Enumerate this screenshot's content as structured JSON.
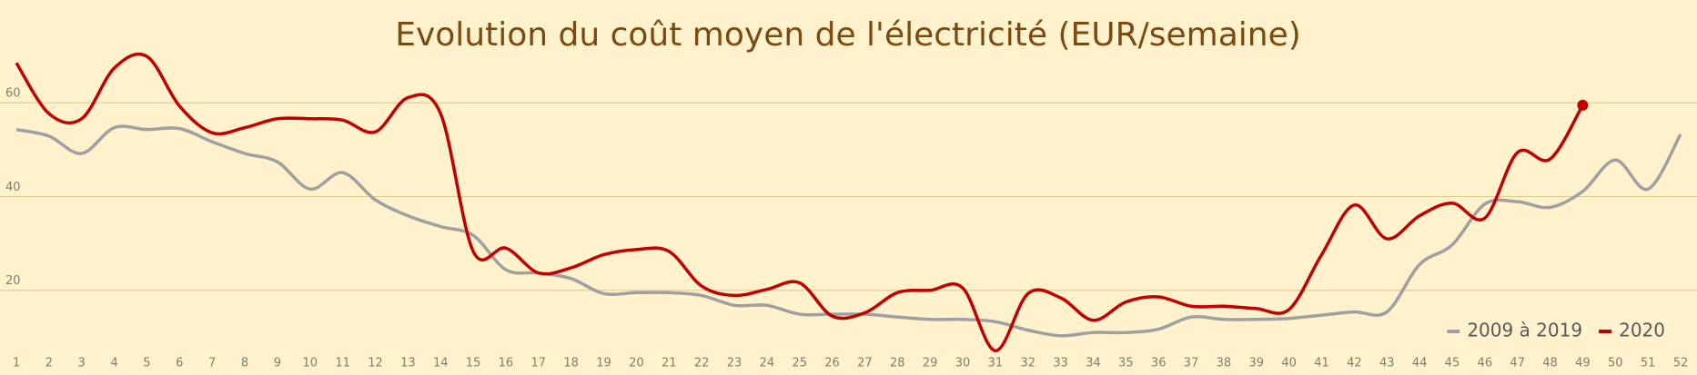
{
  "chart_data": {
    "type": "line",
    "title": "Evolution du coût moyen de l'électricité (EUR/semaine)",
    "categories": [
      "1",
      "2",
      "3",
      "4",
      "5",
      "6",
      "7",
      "8",
      "9",
      "10",
      "11",
      "12",
      "13",
      "14",
      "15",
      "16",
      "17",
      "18",
      "19",
      "20",
      "21",
      "22",
      "23",
      "24",
      "25",
      "26",
      "27",
      "28",
      "29",
      "30",
      "31",
      "32",
      "33",
      "34",
      "35",
      "36",
      "37",
      "38",
      "39",
      "40",
      "41",
      "42",
      "43",
      "44",
      "45",
      "46",
      "47",
      "48",
      "49",
      "50",
      "51",
      "52"
    ],
    "series": [
      {
        "name": "2009 à 2019",
        "color": "#a0a0a0",
        "values": [
          54.3,
          52.9,
          49.2,
          54.7,
          54.3,
          54.5,
          51.7,
          49.2,
          47.4,
          41.6,
          45.1,
          39.3,
          35.9,
          33.6,
          31.7,
          24.4,
          23.7,
          22.5,
          19.3,
          19.5,
          19.5,
          18.9,
          16.8,
          16.8,
          14.9,
          14.9,
          14.9,
          14.3,
          13.8,
          13.8,
          13.3,
          11.5,
          10.3,
          11.0,
          11.0,
          11.7,
          14.3,
          13.8,
          13.8,
          14.0,
          14.7,
          15.4,
          15.4,
          25.5,
          29.7,
          38.4,
          38.9,
          37.7,
          41.1,
          47.8,
          41.6,
          53.3
        ]
      },
      {
        "name": "2020",
        "color": "#c00000",
        "values": [
          68.5,
          57.7,
          56.6,
          67.4,
          69.9,
          59.3,
          53.6,
          54.7,
          56.6,
          56.6,
          56.3,
          53.8,
          61.1,
          57.7,
          28.3,
          29.0,
          23.7,
          24.8,
          27.6,
          28.7,
          28.3,
          20.9,
          18.9,
          20.2,
          21.6,
          14.5,
          15.2,
          19.5,
          20.0,
          20.5,
          7.1,
          19.3,
          18.4,
          13.6,
          17.5,
          18.6,
          16.6,
          16.6,
          16.1,
          15.9,
          27.6,
          38.2,
          31.0,
          35.9,
          38.6,
          35.4,
          49.4,
          48.0,
          59.5,
          null,
          null,
          null
        ]
      }
    ],
    "ylim": [
      6,
      80
    ],
    "yticks": [
      20,
      40,
      60
    ],
    "grid": true,
    "legend": "bottom-right"
  }
}
